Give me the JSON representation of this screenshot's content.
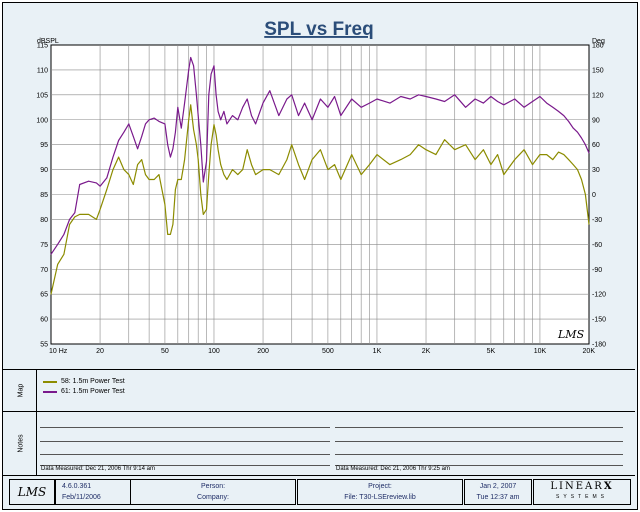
{
  "chart_data": {
    "type": "line",
    "title": "SPL vs Freq",
    "y_left_label": "dBSPL",
    "y_right_label": "Deg",
    "x_scale": "log",
    "xlim": [
      10,
      20000
    ],
    "ylim": [
      55,
      115
    ],
    "y2lim": [
      -180,
      180
    ],
    "x_tick_labels": [
      "10 Hz",
      "20",
      "50",
      "100",
      "200",
      "500",
      "1K",
      "2K",
      "5K",
      "10K",
      "20K"
    ],
    "y_tick_labels": [
      "55",
      "60",
      "65",
      "70",
      "75",
      "80",
      "85",
      "90",
      "95",
      "100",
      "105",
      "110",
      "115"
    ],
    "y2_tick_labels": [
      "-180",
      "-150",
      "-120",
      "-90",
      "-60",
      "-30",
      "0",
      "30",
      "60",
      "90",
      "120",
      "150",
      "180"
    ],
    "grid": true,
    "series": [
      {
        "name": "58: 1.5m Power Test",
        "color": "#8c8c00",
        "x": [
          10,
          11,
          12,
          13,
          14,
          15,
          17,
          19,
          20,
          22,
          24,
          26,
          28,
          30,
          32,
          34,
          36,
          38,
          40,
          43,
          46,
          50,
          52,
          54,
          56,
          58,
          60,
          63,
          66,
          70,
          72,
          75,
          78,
          80,
          83,
          86,
          90,
          93,
          96,
          100,
          103,
          106,
          110,
          115,
          120,
          130,
          140,
          150,
          160,
          170,
          180,
          200,
          220,
          250,
          280,
          300,
          330,
          360,
          400,
          450,
          500,
          550,
          600,
          700,
          800,
          900,
          1000,
          1200,
          1400,
          1600,
          1800,
          2000,
          2300,
          2600,
          3000,
          3500,
          4000,
          4500,
          5000,
          5500,
          6000,
          7000,
          8000,
          9000,
          10000,
          11000,
          12000,
          13000,
          14000,
          15000,
          16000,
          17000,
          18000,
          19000,
          20000
        ],
        "y": [
          65,
          71,
          73,
          79,
          80.5,
          81,
          81,
          80,
          82,
          86,
          90,
          92.5,
          90,
          89,
          87,
          91,
          92,
          89,
          88,
          88,
          89,
          83,
          77,
          77,
          79,
          86,
          88,
          88,
          92,
          100,
          103,
          98,
          95,
          92,
          85,
          81,
          82,
          89,
          95,
          99,
          97,
          94,
          91,
          89,
          88,
          90,
          89,
          90,
          94,
          91,
          89,
          90,
          90,
          89,
          92,
          95,
          91,
          88,
          92,
          94,
          90,
          91,
          88,
          93,
          89,
          91,
          93,
          91,
          92,
          93,
          95,
          94,
          93,
          96,
          94,
          95,
          92,
          94,
          91,
          93,
          89,
          92,
          94,
          91,
          93,
          93,
          92,
          93.5,
          93,
          92,
          91,
          90,
          88,
          85,
          79
        ]
      },
      {
        "name": "61: 1.5m Power Test",
        "color": "#7a1a8c",
        "x": [
          10,
          11,
          12,
          13,
          14,
          15,
          17,
          19,
          20,
          22,
          24,
          26,
          28,
          30,
          32,
          34,
          36,
          38,
          40,
          43,
          46,
          50,
          52,
          54,
          56,
          58,
          60,
          63,
          66,
          70,
          72,
          75,
          78,
          80,
          83,
          86,
          90,
          93,
          96,
          100,
          103,
          106,
          110,
          115,
          120,
          130,
          140,
          150,
          160,
          170,
          180,
          200,
          220,
          250,
          280,
          300,
          330,
          360,
          400,
          450,
          500,
          550,
          600,
          700,
          800,
          900,
          1000,
          1200,
          1400,
          1600,
          1800,
          2000,
          2300,
          2600,
          3000,
          3500,
          4000,
          4500,
          5000,
          5500,
          6000,
          7000,
          8000,
          9000,
          10000,
          11000,
          12000,
          13000,
          14000,
          15000,
          16000,
          17000,
          18000,
          19000,
          20000
        ],
        "y": [
          -72,
          -60,
          -48,
          -30,
          -22,
          12,
          16,
          14,
          10,
          20,
          45,
          65,
          75,
          85,
          70,
          55,
          70,
          85,
          90,
          92,
          88,
          85,
          60,
          45,
          55,
          75,
          105,
          80,
          110,
          150,
          165,
          155,
          120,
          95,
          60,
          15,
          40,
          120,
          145,
          155,
          120,
          100,
          90,
          100,
          85,
          95,
          90,
          105,
          115,
          95,
          85,
          110,
          125,
          95,
          115,
          120,
          95,
          110,
          90,
          115,
          105,
          118,
          95,
          115,
          105,
          110,
          115,
          110,
          118,
          115,
          120,
          118,
          115,
          112,
          120,
          105,
          115,
          110,
          118,
          112,
          108,
          115,
          105,
          112,
          118,
          110,
          105,
          100,
          95,
          88,
          80,
          75,
          68,
          60,
          50
        ]
      }
    ]
  },
  "map": {
    "label": "Map",
    "legend": [
      {
        "text": "58: 1.5m Power Test",
        "color": "#8c8c00"
      },
      {
        "text": "61: 1.5m Power Test",
        "color": "#7a1a8c"
      }
    ]
  },
  "notes": {
    "label": "Notes",
    "left_date": "Data Measured: Dec 21, 2006  Thr  9:14 am",
    "right_date": "Data Measured: Dec 21, 2006  Thr  9:25 am"
  },
  "plot_logo": "LMS",
  "footer": {
    "logo": "LMS",
    "version": "4.6.0.361",
    "build_date": "Feb/11/2006",
    "person_label": "Person:",
    "company_label": "Company:",
    "project_label": "Project:",
    "file_label": "File: T30-LSEreview.lib",
    "date": "Jan 2, 2007",
    "time": "Tue 12:37 am",
    "brand": "LINEAR",
    "brand_x": "X",
    "brand_sub": "SYSTEMS"
  }
}
